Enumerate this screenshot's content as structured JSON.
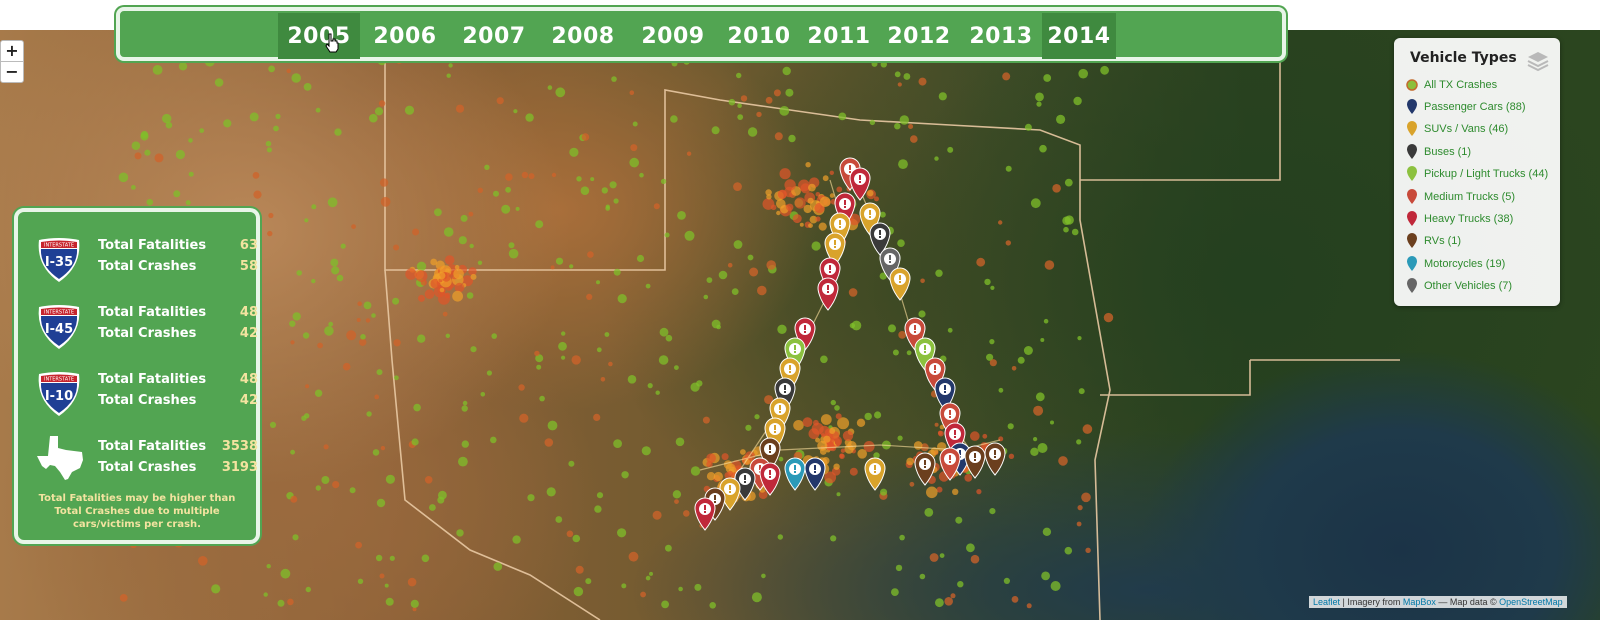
{
  "years": [
    "2005",
    "2006",
    "2007",
    "2008",
    "2009",
    "2010",
    "2011",
    "2012",
    "2013",
    "2014"
  ],
  "selected_year": "2005",
  "zoom": {
    "in_label": "+",
    "out_label": "−"
  },
  "stats": [
    {
      "road": "I-35",
      "shield_top": "INTERSTATE",
      "fatalities_label": "Total Fatalities",
      "fatalities": "63",
      "crashes_label": "Total Crashes",
      "crashes": "58"
    },
    {
      "road": "I-45",
      "shield_top": "INTERSTATE",
      "fatalities_label": "Total Fatalities",
      "fatalities": "48",
      "crashes_label": "Total Crashes",
      "crashes": "42"
    },
    {
      "road": "I-10",
      "shield_top": "INTERSTATE",
      "fatalities_label": "Total Fatalities",
      "fatalities": "48",
      "crashes_label": "Total Crashes",
      "crashes": "42"
    },
    {
      "road": "Texas",
      "fatalities_label": "Total Fatalities",
      "fatalities": "3538",
      "crashes_label": "Total Crashes",
      "crashes": "3193"
    }
  ],
  "note": "Total Fatalities may be higher than Total Crashes due to multiple cars/victims per crash.",
  "legend": {
    "title": "Vehicle Types",
    "items": [
      {
        "label": "All TX Crashes",
        "color": "#8cbf3a",
        "icon": "dot-icon"
      },
      {
        "label": "Passenger Cars (88)",
        "color": "#23386b",
        "icon": "marker-icon"
      },
      {
        "label": "SUVs / Vans (46)",
        "color": "#d9a32b",
        "icon": "marker-icon"
      },
      {
        "label": "Buses (1)",
        "color": "#3a3a3a",
        "icon": "marker-icon"
      },
      {
        "label": "Pickup / Light Trucks (44)",
        "color": "#8cc13f",
        "icon": "marker-icon"
      },
      {
        "label": "Medium Trucks (5)",
        "color": "#c84a3a",
        "icon": "marker-icon"
      },
      {
        "label": "Heavy Trucks (38)",
        "color": "#c0283a",
        "icon": "marker-icon"
      },
      {
        "label": "RVs (1)",
        "color": "#6b3f1e",
        "icon": "marker-icon"
      },
      {
        "label": "Motorcycles (19)",
        "color": "#2b9ab8",
        "icon": "marker-icon"
      },
      {
        "label": "Other Vehicles (7)",
        "color": "#666666",
        "icon": "marker-icon"
      }
    ]
  },
  "attribution": {
    "leaflet": "Leaflet",
    "imagery": " | Imagery from ",
    "mapbox": "MapBox",
    "mapdata": " — Map data © ",
    "osm": "OpenStreetMap"
  },
  "colors": {
    "panel_green": "#52a552",
    "active_year": "#3f8a3f",
    "highlight": "#f3e3a0"
  }
}
